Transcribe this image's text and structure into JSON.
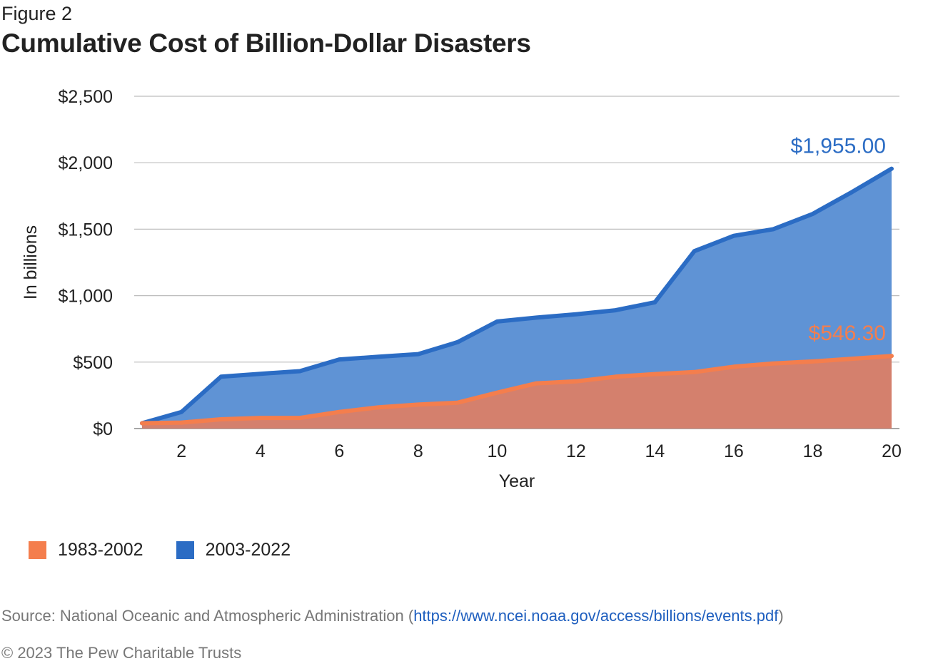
{
  "figure_label": "Figure 2",
  "title": "Cumulative Cost of Billion-Dollar Disasters",
  "chart_data": {
    "type": "area",
    "title": "Cumulative Cost of Billion-Dollar Disasters",
    "xlabel": "Year",
    "ylabel": "In billions",
    "x": [
      1,
      2,
      3,
      4,
      5,
      6,
      7,
      8,
      9,
      10,
      11,
      12,
      13,
      14,
      15,
      16,
      17,
      18,
      19,
      20
    ],
    "x_ticks": [
      2,
      4,
      6,
      8,
      10,
      12,
      14,
      16,
      18,
      20
    ],
    "x_tick_labels": [
      "2",
      "4",
      "6",
      "8",
      "10",
      "12",
      "14",
      "16",
      "18",
      "20"
    ],
    "xlim": [
      1,
      20
    ],
    "ylim": [
      0,
      2500
    ],
    "y_ticks": [
      0,
      500,
      1000,
      1500,
      2000,
      2500
    ],
    "y_tick_labels": [
      "$0",
      "$500",
      "$1,000",
      "$1,500",
      "$2,000",
      "$2,500"
    ],
    "grid": "horizontal",
    "legend_position": "bottom-left",
    "series": [
      {
        "name": "2003-2022",
        "color": "#2b6cc4",
        "fill": "#5f93d5",
        "values": [
          40,
          125,
          390,
          412,
          432,
          520,
          540,
          560,
          650,
          805,
          835,
          860,
          890,
          950,
          1335,
          1450,
          1500,
          1615,
          1780,
          1955
        ],
        "end_label": "$1,955.00"
      },
      {
        "name": "1983-2002",
        "color": "#f47e4d",
        "fill": "#d4806d",
        "values": [
          40,
          45,
          70,
          80,
          80,
          125,
          160,
          180,
          195,
          270,
          340,
          355,
          390,
          410,
          425,
          465,
          490,
          505,
          525,
          546.3
        ],
        "end_label": "$546.30"
      }
    ]
  },
  "source": {
    "prefix": "Source: National Oceanic and Atmospheric Administration (",
    "link": "https://www.ncei.noaa.gov/access/billions/events.pdf",
    "suffix": ")"
  },
  "copyright": "© 2023 The Pew Charitable Trusts"
}
